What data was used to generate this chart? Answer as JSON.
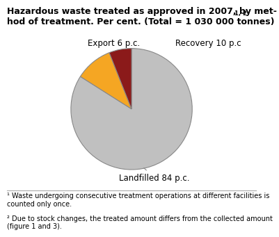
{
  "title": "Hazardous waste treated as approved in 2007, by method of treatment. Per cent. (Total = 1 030 000 tonnes)¹· ²",
  "title_line1": "Hazardous waste treated as approved in 2007, by met-",
  "title_line2": "hod of treatment. Per cent. (Total = 1 030 000 tonnes)",
  "title_superscript": "1, 2",
  "slices": [
    84,
    10,
    6
  ],
  "labels": [
    "Landfilled 84 p.c.",
    "Recovery 10 p.c",
    "Export 6 p.c."
  ],
  "colors": [
    "#c0c0c0",
    "#f5a623",
    "#8b1a1a"
  ],
  "startangle": 90,
  "footnote1": "¹ Waste undergoing consecutive treatment operations at different facilities is\ncounted only once.",
  "footnote2": "² Due to stock changes, the treated amount differs from the collected amount\n(figure 1 and 3).",
  "bg_color": "#ffffff",
  "title_fontsize": 9,
  "label_fontsize": 8.5,
  "footnote_fontsize": 7
}
